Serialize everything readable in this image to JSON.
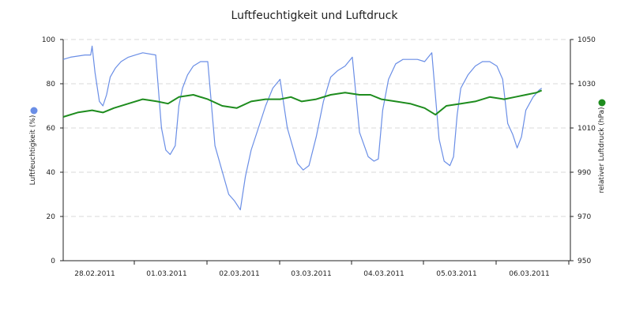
{
  "chart_data": {
    "type": "line",
    "title": "Luftfeuchtigkeit und Luftdruck",
    "ylabel_left": "Luftfeuchtigkeit (%)",
    "ylabel_right": "relativer Luftdruck (hPa)",
    "x_tick_labels": [
      "28.02.2011",
      "01.03.2011",
      "02.03.2011",
      "03.03.2011",
      "04.03.2011",
      "05.03.2011",
      "06.03.2011"
    ],
    "x_range_days": [
      0,
      7
    ],
    "left_axis": {
      "min": 0,
      "max": 100,
      "ticks": [
        0,
        20,
        40,
        60,
        80,
        100
      ]
    },
    "right_axis": {
      "min": 950,
      "max": 1050,
      "ticks": [
        950,
        970,
        990,
        1010,
        1030,
        1050
      ]
    },
    "grid": true,
    "colors": {
      "humidity": "#6a8ee6",
      "pressure": "#1e8c1e",
      "grid": "#d8d8d8"
    },
    "series": [
      {
        "axis": "left",
        "x": [
          0,
          0.1,
          0.3,
          0.38,
          0.4,
          0.44,
          0.5,
          0.55,
          0.6,
          0.65,
          0.72,
          0.8,
          0.9,
          1.0,
          1.1,
          1.28,
          1.36,
          1.42,
          1.48,
          1.55,
          1.6,
          1.65,
          1.72,
          1.8,
          1.9,
          2.0,
          2.1,
          2.29,
          2.37,
          2.45,
          2.52,
          2.6,
          2.7,
          2.8,
          2.9,
          3.0,
          3.1,
          3.24,
          3.32,
          3.4,
          3.5,
          3.6,
          3.7,
          3.8,
          3.9,
          4.0,
          4.1,
          4.22,
          4.3,
          4.36,
          4.42,
          4.5,
          4.6,
          4.7,
          4.8,
          4.9,
          5.0,
          5.1,
          5.2,
          5.27,
          5.35,
          5.4,
          5.45,
          5.5,
          5.6,
          5.7,
          5.8,
          5.9,
          6.0,
          6.08,
          6.15,
          6.22,
          6.28,
          6.34,
          6.4,
          6.5,
          6.58,
          6.62
        ],
        "values": [
          91,
          92,
          93,
          93,
          97,
          85,
          72,
          70,
          75,
          83,
          87,
          90,
          92,
          93,
          94,
          93,
          60,
          50,
          48,
          52,
          70,
          78,
          84,
          88,
          90,
          90,
          52,
          30,
          27,
          23,
          38,
          50,
          60,
          70,
          78,
          82,
          60,
          44,
          41,
          43,
          56,
          72,
          83,
          86,
          88,
          92,
          58,
          47,
          45,
          46,
          68,
          82,
          89,
          91,
          91,
          91,
          90,
          94,
          55,
          45,
          43,
          47,
          66,
          78,
          84,
          88,
          90,
          90,
          88,
          82,
          62,
          57,
          51,
          56,
          68,
          74,
          77,
          78
        ]
      },
      {
        "axis": "right",
        "x": [
          0,
          0.2,
          0.4,
          0.55,
          0.7,
          0.9,
          1.1,
          1.3,
          1.45,
          1.6,
          1.8,
          2.0,
          2.2,
          2.4,
          2.6,
          2.8,
          3.0,
          3.15,
          3.3,
          3.5,
          3.7,
          3.9,
          4.1,
          4.25,
          4.4,
          4.6,
          4.8,
          5.0,
          5.15,
          5.3,
          5.5,
          5.7,
          5.9,
          6.1,
          6.25,
          6.4,
          6.55,
          6.62
        ],
        "values": [
          1015,
          1017,
          1018,
          1017,
          1019,
          1021,
          1023,
          1022,
          1021,
          1024,
          1025,
          1023,
          1020,
          1019,
          1022,
          1023,
          1023,
          1024,
          1022,
          1023,
          1025,
          1026,
          1025,
          1025,
          1023,
          1022,
          1021,
          1019,
          1016,
          1020,
          1021,
          1022,
          1024,
          1023,
          1024,
          1025,
          1026,
          1027
        ]
      }
    ]
  }
}
